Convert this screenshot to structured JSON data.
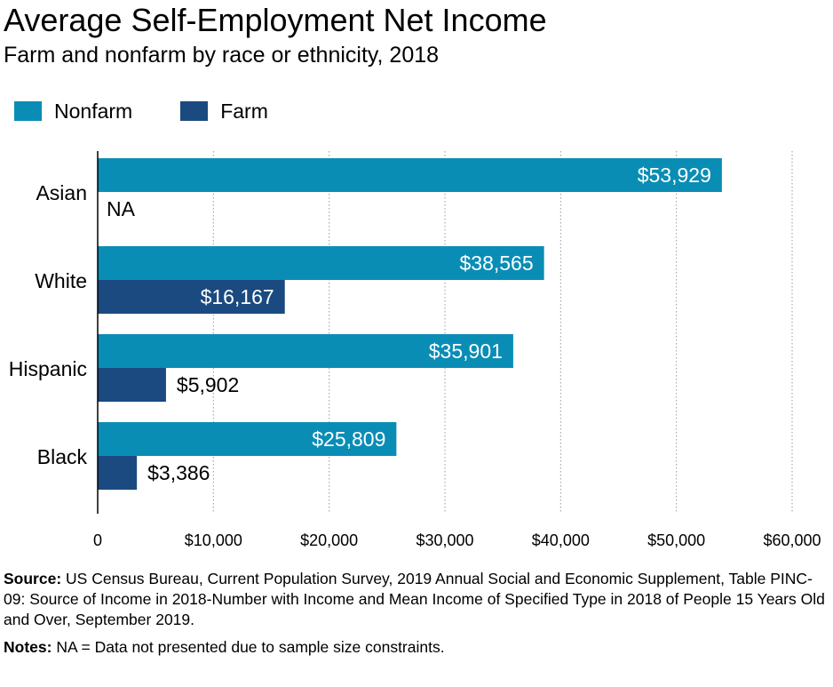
{
  "header": {
    "title": "Average Self-Employment Net Income",
    "subtitle": "Farm and nonfarm by race or ethnicity, 2018"
  },
  "legend": [
    {
      "label": "Nonfarm",
      "color": "#0a8db5"
    },
    {
      "label": "Farm",
      "color": "#1a4a80"
    }
  ],
  "chart_data": {
    "type": "bar",
    "orientation": "horizontal",
    "categories": [
      "Asian",
      "White",
      "Hispanic",
      "Black"
    ],
    "series": [
      {
        "name": "Nonfarm",
        "color": "#0a8db5",
        "values": [
          53929,
          38565,
          35901,
          25809
        ],
        "labels": [
          "$53,929",
          "$38,565",
          "$35,901",
          "$25,809"
        ]
      },
      {
        "name": "Farm",
        "color": "#1a4a80",
        "values": [
          null,
          16167,
          5902,
          3386
        ],
        "labels": [
          "NA",
          "$16,167",
          "$5,902",
          "$3,386"
        ]
      }
    ],
    "xlim": [
      0,
      60000
    ],
    "xticks": [
      0,
      10000,
      20000,
      30000,
      40000,
      50000,
      60000
    ],
    "xtick_labels": [
      "0",
      "$10,000",
      "$20,000",
      "$30,000",
      "$40,000",
      "$50,000",
      "$60,000"
    ],
    "grid": "vertical dotted",
    "legend_position": "top-left",
    "title": "Average Self-Employment Net Income",
    "subtitle": "Farm and nonfarm by race or ethnicity, 2018"
  },
  "footnotes": {
    "source_label": "Source:",
    "source_text": "US Census Bureau, Current Population Survey, 2019 Annual Social and Economic Supplement, Table PINC-09: Source of Income in 2018-Number with Income and Mean Income of Specified Type in 2018 of People 15 Years Old and Over, September 2019.",
    "notes_label": "Notes:",
    "notes_text": "NA = Data not presented due to sample size constraints."
  }
}
